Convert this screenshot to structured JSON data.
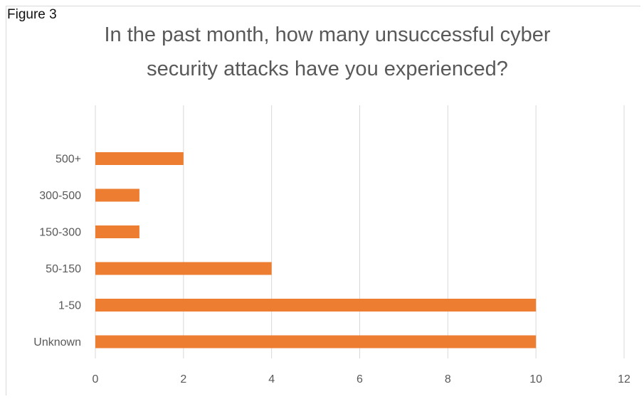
{
  "figure_label": "Figure 3",
  "chart_data": {
    "type": "bar",
    "orientation": "horizontal",
    "title_lines": [
      "In the past month, how many unsuccessful cyber",
      "security attacks have you experienced?"
    ],
    "categories": [
      "500+",
      "300-500",
      "150-300",
      "50-150",
      "1-50",
      "Unknown"
    ],
    "values": [
      2,
      1,
      1,
      4,
      10,
      10
    ],
    "xlim": [
      0,
      12
    ],
    "xticks": [
      0,
      2,
      4,
      6,
      8,
      10,
      12
    ],
    "grid": true,
    "bar_color": "#ed7d31",
    "grid_color": "#d9d9d9",
    "text_color": "#595959"
  }
}
